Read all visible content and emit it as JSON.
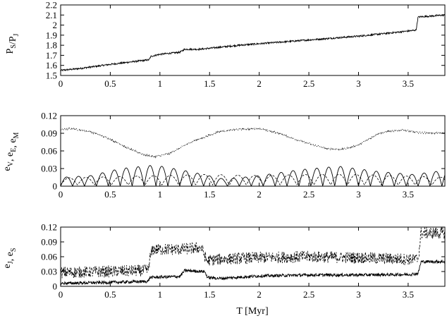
{
  "figure": {
    "xlabel": "T [Myr]"
  },
  "chart_data": [
    {
      "type": "line",
      "ylabel": "P_S/P_J",
      "xlim": [
        0,
        3.87
      ],
      "ylim": [
        1.5,
        2.2
      ],
      "x_ticks": [
        0,
        0.5,
        1,
        1.5,
        2,
        2.5,
        3,
        3.5
      ],
      "x_tick_labels": [
        "0",
        "0.5",
        "1",
        "1.5",
        "2",
        "2.5",
        "3",
        "3.5"
      ],
      "y_ticks": [
        1.5,
        1.6,
        1.7,
        1.8,
        1.9,
        2,
        2.1,
        2.2
      ],
      "y_tick_labels": [
        "1.5",
        "1.6",
        "1.7",
        "1.8",
        "1.9",
        "2",
        "2.1",
        "2.2"
      ],
      "grid": false,
      "series": [
        {
          "style": "solid",
          "color": "#000000",
          "noise": 0.008,
          "x": [
            0,
            0.2,
            0.5,
            0.8,
            0.89,
            0.91,
            1.0,
            1.2,
            1.25,
            1.4,
            1.8,
            2.2,
            2.6,
            3.0,
            3.4,
            3.58,
            3.6,
            3.87
          ],
          "y": [
            1.55,
            1.57,
            1.61,
            1.645,
            1.655,
            1.69,
            1.71,
            1.73,
            1.76,
            1.76,
            1.8,
            1.83,
            1.86,
            1.89,
            1.93,
            1.95,
            2.08,
            2.1
          ]
        }
      ]
    },
    {
      "type": "line",
      "ylabel": "e_V, e_E, e_M",
      "xlim": [
        0,
        3.87
      ],
      "ylim": [
        0,
        0.12
      ],
      "x_ticks": [
        0,
        0.5,
        1,
        1.5,
        2,
        2.5,
        3,
        3.5
      ],
      "x_tick_labels": [
        "0",
        "0.5",
        "1",
        "1.5",
        "2",
        "2.5",
        "3",
        "3.5"
      ],
      "y_ticks": [
        0,
        0.03,
        0.06,
        0.09,
        0.12
      ],
      "y_tick_labels": [
        "0",
        "0.03",
        "0.06",
        "0.09",
        "0.12"
      ],
      "grid": false,
      "series": [
        {
          "style": "dotted",
          "color": "#000000",
          "noise": 0.0015,
          "x": [
            0,
            0.1,
            0.3,
            0.5,
            0.7,
            0.85,
            0.95,
            1.1,
            1.3,
            1.6,
            1.8,
            2.0,
            2.2,
            2.45,
            2.7,
            2.85,
            3.0,
            3.2,
            3.3,
            3.45,
            3.6,
            3.87
          ],
          "y": [
            0.096,
            0.098,
            0.093,
            0.08,
            0.063,
            0.053,
            0.05,
            0.056,
            0.074,
            0.093,
            0.097,
            0.098,
            0.09,
            0.075,
            0.063,
            0.063,
            0.07,
            0.09,
            0.093,
            0.096,
            0.091,
            0.09
          ]
        },
        {
          "style": "solid",
          "color": "#000000",
          "oscillation": {
            "period": 0.12,
            "floor": 0
          },
          "envelope_x": [
            0,
            0.3,
            0.6,
            0.95,
            1.3,
            1.65,
            2.0,
            2.4,
            2.8,
            3.2,
            3.55,
            3.87
          ],
          "envelope_y": [
            0.015,
            0.018,
            0.03,
            0.036,
            0.025,
            0.012,
            0.018,
            0.028,
            0.034,
            0.025,
            0.02,
            0.027
          ]
        },
        {
          "style": "dashed",
          "color": "#000000",
          "oscillation": {
            "period": 0.17,
            "floor": 0.002
          },
          "envelope_x": [
            0,
            0.5,
            1.0,
            1.5,
            2.0,
            2.5,
            3.0,
            3.5,
            3.87
          ],
          "envelope_y": [
            0.014,
            0.016,
            0.018,
            0.02,
            0.018,
            0.02,
            0.02,
            0.017,
            0.015
          ]
        }
      ]
    },
    {
      "type": "line",
      "ylabel": "e_J, e_S",
      "xlim": [
        0,
        3.87
      ],
      "ylim": [
        0,
        0.12
      ],
      "x_ticks": [
        0,
        0.5,
        1,
        1.5,
        2,
        2.5,
        3,
        3.5
      ],
      "x_tick_labels": [
        "0",
        "0.5",
        "1",
        "1.5",
        "2",
        "2.5",
        "3",
        "3.5"
      ],
      "y_ticks": [
        0,
        0.03,
        0.06,
        0.09,
        0.12
      ],
      "y_tick_labels": [
        "0",
        "0.03",
        "0.06",
        "0.09",
        "0.12"
      ],
      "grid": false,
      "series": [
        {
          "style": "dashed",
          "color": "#000000",
          "noise": 0.012,
          "x": [
            0,
            0.5,
            0.88,
            0.9,
            0.93,
            1.2,
            1.42,
            1.47,
            1.6,
            2.0,
            2.5,
            3.0,
            3.5,
            3.6,
            3.63,
            3.87
          ],
          "y": [
            0.028,
            0.03,
            0.032,
            0.058,
            0.075,
            0.075,
            0.078,
            0.052,
            0.055,
            0.058,
            0.06,
            0.058,
            0.055,
            0.055,
            0.108,
            0.108
          ]
        },
        {
          "style": "solid",
          "color": "#000000",
          "noise": 0.003,
          "x": [
            0,
            0.5,
            0.88,
            0.9,
            1.2,
            1.25,
            1.45,
            1.48,
            1.6,
            2.0,
            2.5,
            3.0,
            3.5,
            3.6,
            3.63,
            3.87
          ],
          "y": [
            0.006,
            0.008,
            0.01,
            0.018,
            0.02,
            0.032,
            0.03,
            0.018,
            0.016,
            0.021,
            0.023,
            0.023,
            0.024,
            0.026,
            0.05,
            0.05
          ]
        }
      ]
    }
  ]
}
